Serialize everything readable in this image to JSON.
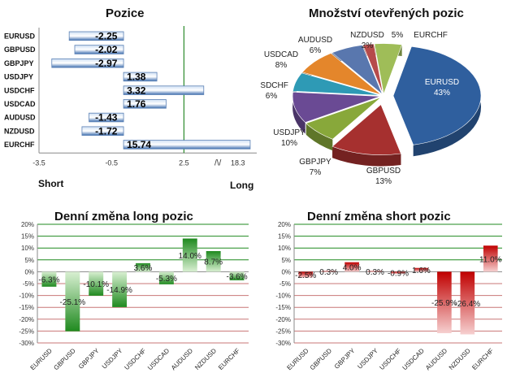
{
  "colors": {
    "bar_blue_dark": "#3f6fb0",
    "bar_blue_light": "#cfe0f4",
    "green_dark": "#1f8a1f",
    "green_light": "#d9f0d2",
    "red_dark": "#c00000",
    "red_light": "#f6d0d0",
    "divider_green": "#2e8b2e"
  },
  "charts": {
    "pozice": {
      "title": "Pozice",
      "label_short": "Short",
      "label_long": "Long",
      "xticks": [
        "-3.5",
        "-0.5",
        "2.5"
      ],
      "xtick_end": "18.3",
      "break_mark": "/\\/"
    },
    "pie": {
      "title": "Množství otevřených pozic"
    },
    "long": {
      "title": "Denní změna long pozic"
    },
    "short": {
      "title": "Denní změna short pozic"
    }
  },
  "chart_data": [
    {
      "type": "bar",
      "orientation": "horizontal",
      "title": "Pozice",
      "categories": [
        "EURUSD",
        "GBPUSD",
        "GBPJPY",
        "USDJPY",
        "USDCHF",
        "USDCAD",
        "AUDUSD",
        "NZDUSD",
        "EURCHF"
      ],
      "values": [
        -2.25,
        -2.02,
        -2.97,
        1.38,
        3.32,
        1.76,
        -1.43,
        -1.72,
        15.74
      ],
      "value_labels": [
        "-2.25",
        "-2.02",
        "-2.97",
        "1.38",
        "3.32",
        "1.76",
        "-1.43",
        "-1.72",
        "15.74"
      ],
      "xlabel": "",
      "ylabel": "",
      "xlim": [
        -3.5,
        18.3
      ],
      "xtick_labels": [
        "-3.5",
        "-0.5",
        "2.5",
        "18.3"
      ],
      "axis_break": true,
      "reference_line": 2.5
    },
    {
      "type": "pie",
      "title": "Množství otevřených pozic",
      "style": "3d-exploded",
      "slices": [
        {
          "label": "EURUSD",
          "value": 43,
          "value_label": "43%",
          "color": "#2f5f9e"
        },
        {
          "label": "GBPUSD",
          "value": 13,
          "value_label": "13%",
          "color": "#a6302f"
        },
        {
          "label": "GBPJPY",
          "value": 7,
          "value_label": "7%",
          "color": "#88a83a"
        },
        {
          "label": "USDJPY",
          "value": 10,
          "value_label": "10%",
          "color": "#6a4a94"
        },
        {
          "label": "USDCHF",
          "value": 6,
          "value_label": "6%",
          "color": "#2e9ab5"
        },
        {
          "label": "USDCAD",
          "value": 8,
          "value_label": "8%",
          "color": "#e4862b"
        },
        {
          "label": "AUDUSD",
          "value": 6,
          "value_label": "6%",
          "color": "#5977ae"
        },
        {
          "label": "NZDUSD",
          "value": 2,
          "value_label": "2%",
          "color": "#b64b4b"
        },
        {
          "label": "EURCHF",
          "value": 5,
          "value_label": "5%",
          "color": "#9fbd58"
        }
      ]
    },
    {
      "type": "bar",
      "title": "Denní změna long pozic",
      "categories": [
        "EURUSD",
        "GBPUSD",
        "GBPJPY",
        "USDJPY",
        "USDCHF",
        "USDCAD",
        "AUDUSD",
        "NZDUSD",
        "EURCHF"
      ],
      "values": [
        -6.3,
        -25.1,
        -10.1,
        -14.9,
        3.6,
        -5.3,
        14.0,
        8.7,
        -3.6
      ],
      "value_labels": [
        "-6.3%",
        "-25.1%",
        "-10.1%",
        "-14.9%",
        "3.6%",
        "-5.3%",
        "14.0%",
        "8.7%",
        "-3.6%"
      ],
      "ylim": [
        -30,
        20
      ],
      "ytick_labels": [
        "20%",
        "15%",
        "10%",
        "5%",
        "0%",
        "-5%",
        "-10%",
        "-15%",
        "-20%",
        "-25%",
        "-30%"
      ],
      "grid": true
    },
    {
      "type": "bar",
      "title": "Denní změna short pozic",
      "categories": [
        "EURUSD",
        "GBPUSD",
        "GBPJPY",
        "USDJPY",
        "USDCHF",
        "USDCAD",
        "AUDUSD",
        "NZDUSD",
        "EURCHF"
      ],
      "values": [
        -2.5,
        0.3,
        4.0,
        0.3,
        -0.9,
        1.6,
        -25.9,
        -26.4,
        11.0
      ],
      "value_labels": [
        "-2.5%",
        "0.3%",
        "4.0%",
        "0.3%",
        "-0.9%",
        "1.6%",
        "-25.9%",
        "-26.4%",
        "11.0%"
      ],
      "ylim": [
        -30,
        20
      ],
      "ytick_labels": [
        "20%",
        "15%",
        "10%",
        "5%",
        "0%",
        "-5%",
        "-10%",
        "-15%",
        "-20%",
        "-25%",
        "-30%"
      ],
      "grid": true
    }
  ]
}
